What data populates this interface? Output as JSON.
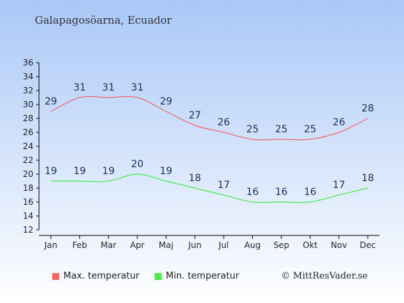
{
  "title": "Galapagosöarna, Ecuador",
  "copyright": "© MittResVader.se",
  "colors": {
    "background_top": "#a9c8f7",
    "background_bottom": "#ffffff",
    "max_series": "#f06a6a",
    "min_series": "#44ee44",
    "axis": "#000000",
    "label": "#1a2d5a"
  },
  "chart_data": {
    "type": "line",
    "title": "Galapagosöarna, Ecuador",
    "categories": [
      "Jan",
      "Feb",
      "Mar",
      "Apr",
      "Maj",
      "Jun",
      "Jul",
      "Aug",
      "Sep",
      "Okt",
      "Nov",
      "Dec"
    ],
    "ylim": [
      12,
      36
    ],
    "yticks": [
      12,
      14,
      16,
      18,
      20,
      22,
      24,
      26,
      28,
      30,
      32,
      34,
      36
    ],
    "grid": false,
    "legend_position": "bottom-left",
    "series": [
      {
        "name": "Max. temperatur",
        "color": "#f06a6a",
        "values": [
          29,
          31,
          31,
          31,
          29,
          27,
          26,
          25,
          25,
          25,
          26,
          28
        ]
      },
      {
        "name": "Min. temperatur",
        "color": "#44ee44",
        "values": [
          19,
          19,
          19,
          20,
          19,
          18,
          17,
          16,
          16,
          16,
          17,
          18
        ]
      }
    ]
  },
  "legend": {
    "max_label": "Max. temperatur",
    "min_label": "Min. temperatur"
  }
}
